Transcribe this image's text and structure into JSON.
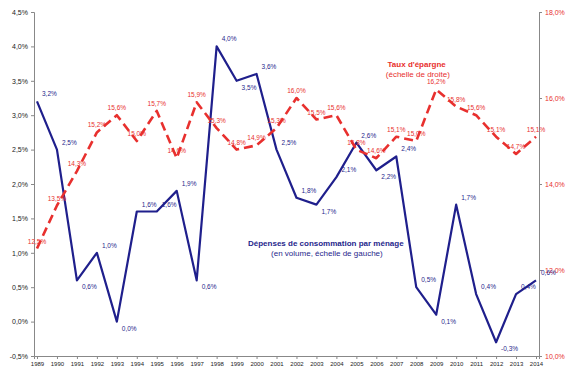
{
  "chart_data": {
    "type": "line",
    "categories": [
      "1989",
      "1990",
      "1991",
      "1992",
      "1993",
      "1994",
      "1995",
      "1996",
      "1997",
      "1998",
      "1999",
      "2000",
      "2001",
      "2002",
      "2003",
      "2004",
      "2005",
      "2006",
      "2007",
      "2008",
      "2009",
      "2010",
      "2011",
      "2012",
      "2013",
      "2014"
    ],
    "series": [
      {
        "name": "Dépenses de consommation par ménage (en volume, échelle de gauche)",
        "color": "#1f1f8c",
        "line_style": "solid",
        "values": [
          3.2,
          2.5,
          0.6,
          1.0,
          0.0,
          1.6,
          1.6,
          1.9,
          0.6,
          4.0,
          3.5,
          3.6,
          2.5,
          1.8,
          1.7,
          2.1,
          2.6,
          2.2,
          2.4,
          0.5,
          0.1,
          1.7,
          0.4,
          -0.3,
          0.4,
          0.6
        ],
        "value_labels": [
          "3,2%",
          "2,5%",
          "0,6%",
          "1,0%",
          "0,0%",
          "1,6%",
          "1,6%",
          "1,9%",
          "0,6%",
          "4,0%",
          "3,5%",
          "3,6%",
          "2,5%",
          "1,8%",
          "1,7%",
          "2,1%",
          "2,6%",
          "2,2%",
          "2,4%",
          "0,5%",
          "0,1%",
          "1,7%",
          "0,4%",
          "-0,3%",
          "0,4%",
          "0,6%"
        ]
      },
      {
        "name": "Taux d'épargne (échelle de droite)",
        "color": "#e8302e",
        "line_style": "dashed",
        "axis": "y2",
        "values": [
          12.5,
          13.5,
          14.3,
          15.2,
          15.6,
          15.0,
          15.7,
          14.6,
          15.9,
          15.3,
          14.8,
          14.9,
          15.3,
          16.0,
          15.5,
          15.6,
          14.8,
          14.6,
          15.1,
          15.0,
          16.2,
          15.8,
          15.6,
          15.1,
          14.7,
          15.1
        ],
        "value_labels": [
          "12,5%",
          "13,5%",
          "14,3%",
          "15,2%",
          "15,6%",
          "15,0%",
          "15,7%",
          "14,6%",
          "15,9%",
          "15,3%",
          "14,8%",
          "14,9%",
          "15,3%",
          "16,0%",
          "15,5%",
          "15,6%",
          "14,8%",
          "14,6%",
          "15,1%",
          "15,0%",
          "16,2%",
          "15,8%",
          "15,6%",
          "15,1%",
          "14,7%",
          "15,1%"
        ]
      }
    ],
    "ylim": [
      -0.5,
      4.5
    ],
    "yticks": [
      {
        "value": -0.5,
        "label": "-0,5%"
      },
      {
        "value": 0,
        "label": "0,0%"
      },
      {
        "value": 0.5,
        "label": "0,5%"
      },
      {
        "value": 1,
        "label": "1,0%"
      },
      {
        "value": 1.5,
        "label": "1,5%"
      },
      {
        "value": 2,
        "label": "2,0%"
      },
      {
        "value": 2.5,
        "label": "2,5%"
      },
      {
        "value": 3,
        "label": "3,0%"
      },
      {
        "value": 3.5,
        "label": "3,5%"
      },
      {
        "value": 4,
        "label": "4,0%"
      },
      {
        "value": 4.5,
        "label": "4,5%"
      }
    ],
    "y2lim": [
      10,
      18
    ],
    "y2ticks": [
      {
        "value": 10,
        "label": "10,0%"
      },
      {
        "value": 12,
        "label": "12,0%"
      },
      {
        "value": 14,
        "label": "14,0%"
      },
      {
        "value": 16,
        "label": "16,0%"
      },
      {
        "value": 18,
        "label": "18,0%"
      }
    ],
    "data_labels": true,
    "grid": false
  }
}
